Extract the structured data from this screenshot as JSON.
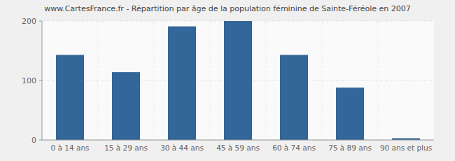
{
  "chart_data": {
    "type": "bar",
    "title": "www.CartesFrance.fr - Répartition par âge de la population féminine de Sainte-Féréole en 2007",
    "categories": [
      "0 à 14 ans",
      "15 à 29 ans",
      "30 à 44 ans",
      "45 à 59 ans",
      "60 à 74 ans",
      "75 à 89 ans",
      "90 ans et plus"
    ],
    "values": [
      143,
      114,
      191,
      200,
      143,
      88,
      3
    ],
    "color": "#336699",
    "ylim": [
      0,
      200
    ],
    "yticks": [
      0,
      100,
      200
    ],
    "grid": true
  }
}
